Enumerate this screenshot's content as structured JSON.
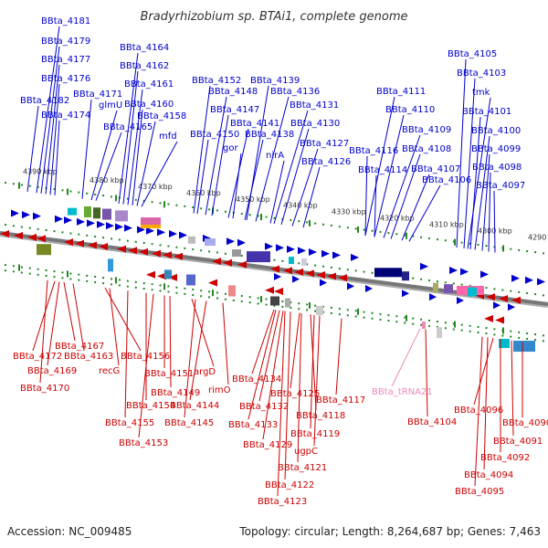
{
  "title": "Bradyrhizobium sp. BTAi1, complete genome",
  "footer": {
    "accession": "Accession: NC_009485",
    "topology": "Topology: circular; Length: 8,264,687 bp; Genes: 7,463"
  },
  "colors": {
    "forward": "#0000cc",
    "reverse": "#cc0000",
    "trna": "#ee88bb",
    "backbone": "#777777",
    "ruler": "#228822"
  },
  "ruler_labels": [
    "4390 kbp",
    "4380 kbp",
    "4370 kbp",
    "4360 kbp",
    "4350 kbp",
    "4340 kbp",
    "4330 kbp",
    "4320 kbp",
    "4310 kbp",
    "4300 kbp",
    "4290 kbp"
  ],
  "top_labels": [
    "BBta_4181",
    "BBta_4179",
    "BBta_4177",
    "BBta_4176",
    "BBta_4182",
    "BBta_4174",
    "BBta_4171",
    "glmU",
    "BBta_4165",
    "BBta_4164",
    "BBta_4162",
    "BBta_4161",
    "BBta_4160",
    "BBta_4158",
    "mfd",
    "BBta_4152",
    "BBta_4148",
    "BBta_4147",
    "BBta_4150",
    "BBta_4141",
    "gor",
    "BBta_4139",
    "BBta_4136",
    "BBta_4138",
    "BBta_4131",
    "BBta_4130",
    "nirA",
    "BBta_4127",
    "BBta_4126",
    "BBta_4111",
    "BBta_4110",
    "BBta_4116",
    "BBta_4109",
    "BBta_4114",
    "BBta_4108",
    "BBta_4107",
    "BBta_4106",
    "BBta_4105",
    "BBta_4103",
    "tmk",
    "BBta_4101",
    "BBta_4100",
    "BBta_4099",
    "BBta_4098",
    "BBta_4097"
  ],
  "bottom_labels": [
    "BBta_4167",
    "BBta_4172",
    "BBta_4163",
    "BBta_4156",
    "BBta_4169",
    "recG",
    "BBta_4170",
    "BBta_4151",
    "argD",
    "BBta_4149",
    "rimO",
    "BBta_4154",
    "BBta_4144",
    "BBta_4155",
    "BBta_4145",
    "BBta_4153",
    "BBta_4134",
    "BBta_4132",
    "BBta_4125",
    "BBta_4117",
    "BBta_4133",
    "BBta_4118",
    "BBta_4119",
    "BBta_4129",
    "ugpC",
    "BBta_4121",
    "BBta_4122",
    "BBta_4123",
    "BBta_tRNA21",
    "BBta_4104",
    "BBta_4096",
    "BBta_4090",
    "BBta_4091",
    "BBta_4092",
    "BBta_4094",
    "BBta_4095"
  ]
}
